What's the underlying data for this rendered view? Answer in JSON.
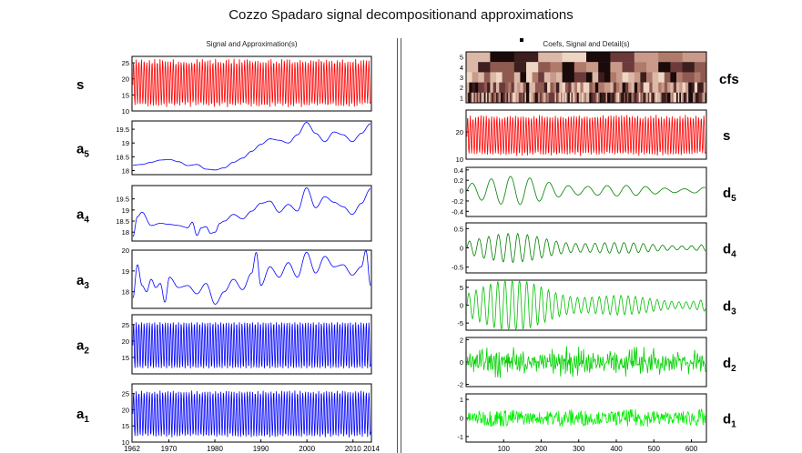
{
  "title": "Cozzo Spadaro signal decompositionand approximations",
  "left_title": "Signal and Approximation(s)",
  "right_title": "Coefs, Signal and Detail(s)",
  "chart_data": [
    {
      "panel": "left",
      "type": "line",
      "x_ticks": [
        "1962",
        "1970",
        "1980",
        "1990",
        "2000",
        "2010",
        "2014"
      ],
      "xlim": [
        1962,
        2014
      ],
      "rows": [
        {
          "label": "s",
          "sub": "",
          "color": "#ff0000",
          "kind": "osc",
          "ylim": [
            10,
            27
          ],
          "yticks": [
            "25",
            "20",
            "15",
            "10"
          ],
          "mean": 18.7,
          "amp": 7.0,
          "period": 1,
          "noise": 0.3
        },
        {
          "label": "a",
          "sub": "5",
          "color": "#0000ff",
          "kind": "knots",
          "ylim": [
            17.85,
            19.8
          ],
          "yticks": [
            "19.5",
            "19",
            "18.5",
            "18"
          ],
          "x": [
            1962,
            1964,
            1966,
            1968,
            1970,
            1972,
            1974,
            1976,
            1978,
            1980,
            1982,
            1984,
            1986,
            1988,
            1990,
            1992,
            1994,
            1996,
            1998,
            2000,
            2002,
            2004,
            2006,
            2008,
            2010,
            2012,
            2014
          ],
          "y": [
            18.2,
            18.22,
            18.3,
            18.38,
            18.4,
            18.32,
            18.18,
            18.22,
            18.05,
            18.02,
            18.1,
            18.3,
            18.45,
            18.7,
            18.95,
            19.15,
            19.1,
            19.0,
            19.3,
            19.75,
            19.35,
            19.05,
            19.4,
            19.3,
            19.05,
            19.35,
            19.7
          ]
        },
        {
          "label": "a",
          "sub": "4",
          "color": "#0000ff",
          "kind": "knots",
          "ylim": [
            17.6,
            20.1
          ],
          "yticks": [
            "19.5",
            "19",
            "18.5",
            "18"
          ],
          "x": [
            1962,
            1963,
            1964,
            1966,
            1968,
            1970,
            1972,
            1974,
            1975,
            1976,
            1977,
            1978,
            1979,
            1980,
            1981,
            1982,
            1984,
            1986,
            1988,
            1990,
            1992,
            1994,
            1996,
            1998,
            2000,
            2002,
            2004,
            2006,
            2008,
            2010,
            2012,
            2014
          ],
          "y": [
            17.8,
            18.7,
            18.9,
            18.3,
            18.4,
            18.35,
            18.3,
            18.2,
            18.45,
            17.85,
            18.2,
            18.25,
            17.95,
            18.0,
            18.4,
            18.5,
            18.8,
            18.6,
            18.95,
            19.3,
            19.4,
            18.9,
            19.25,
            18.95,
            20.0,
            19.1,
            19.6,
            19.35,
            19.15,
            18.8,
            19.3,
            19.95
          ]
        },
        {
          "label": "a",
          "sub": "3",
          "color": "#0000ff",
          "kind": "knots",
          "ylim": [
            17.2,
            20.0
          ],
          "yticks": [
            "20",
            "19",
            "18"
          ],
          "x": [
            1962,
            1963,
            1964,
            1965,
            1966,
            1967,
            1968,
            1969,
            1970,
            1972,
            1974,
            1976,
            1978,
            1980,
            1982,
            1984,
            1986,
            1988,
            1989,
            1990,
            1992,
            1994,
            1996,
            1998,
            2000,
            2002,
            2004,
            2006,
            2008,
            2010,
            2012,
            2013,
            2014
          ],
          "y": [
            17.7,
            19.3,
            18.3,
            18.0,
            18.6,
            18.2,
            18.4,
            17.5,
            18.7,
            18.2,
            18.3,
            17.9,
            18.4,
            17.4,
            18.0,
            18.6,
            18.1,
            18.9,
            19.9,
            18.3,
            19.2,
            18.7,
            19.4,
            18.7,
            19.9,
            18.9,
            19.7,
            19.2,
            19.3,
            18.8,
            19.2,
            20.0,
            18.3
          ]
        },
        {
          "label": "a",
          "sub": "2",
          "color": "#0000ff",
          "kind": "osc",
          "ylim": [
            10,
            28
          ],
          "yticks": [
            "25",
            "20",
            "15"
          ],
          "mean": 18.7,
          "amp": 7.0,
          "period": 1,
          "noise": 0.0
        },
        {
          "label": "a",
          "sub": "1",
          "color": "#0000ff",
          "kind": "osc",
          "ylim": [
            10,
            28
          ],
          "yticks": [
            "25",
            "20",
            "15",
            "10"
          ],
          "mean": 18.7,
          "amp": 7.0,
          "period": 1,
          "noise": 0.15
        }
      ]
    },
    {
      "panel": "right",
      "type": "line",
      "x_ticks": [
        "100",
        "200",
        "300",
        "400",
        "500",
        "600"
      ],
      "xlim": [
        0,
        640
      ],
      "coefs": {
        "label": "cfs",
        "levels": [
          "5",
          "4",
          "3",
          "2",
          "1"
        ],
        "palette": [
          "#1a0a0a",
          "#3d1e1e",
          "#6b3a3a",
          "#8f5a50",
          "#b07a6a",
          "#c9998a",
          "#dcb8a8",
          "#efd6c4"
        ]
      },
      "rows": [
        {
          "label": "s",
          "sub": "",
          "color": "#ff0000",
          "kind": "osc",
          "ylim": [
            10,
            28
          ],
          "yticks": [
            "20",
            "10"
          ],
          "mean": 18.7,
          "amp": 7.0,
          "period": 12,
          "noise": 0.3
        },
        {
          "label": "d",
          "sub": "5",
          "color": "#008000",
          "kind": "wave",
          "ylim": [
            -0.5,
            0.45
          ],
          "yticks": [
            "0.4",
            "0.2",
            "0",
            "-0.2",
            "-0.4"
          ],
          "amp": 0.22,
          "period": 32,
          "noise": 0.0
        },
        {
          "label": "d",
          "sub": "4",
          "color": "#008000",
          "kind": "wave",
          "ylim": [
            -0.65,
            0.65
          ],
          "yticks": [
            "0.5",
            "0",
            "-0.5"
          ],
          "amp": 0.3,
          "period": 16,
          "noise": 0.0
        },
        {
          "label": "d",
          "sub": "3",
          "color": "#00c000",
          "kind": "wave",
          "ylim": [
            -7,
            7
          ],
          "yticks": [
            "5",
            "0",
            "-5"
          ],
          "amp": 5.8,
          "period": 12,
          "noise": 0.0
        },
        {
          "label": "d",
          "sub": "2",
          "color": "#00d000",
          "kind": "noise",
          "ylim": [
            -2.2,
            2.2
          ],
          "yticks": [
            "2",
            "0",
            "-2"
          ],
          "amp": 0.8,
          "period": 4,
          "noise": 0.0
        },
        {
          "label": "d",
          "sub": "1",
          "color": "#00ee00",
          "kind": "noise",
          "ylim": [
            -1.3,
            1.3
          ],
          "yticks": [
            "1",
            "0",
            "-1"
          ],
          "amp": 0.45,
          "period": 2,
          "noise": 0.0
        }
      ]
    }
  ]
}
